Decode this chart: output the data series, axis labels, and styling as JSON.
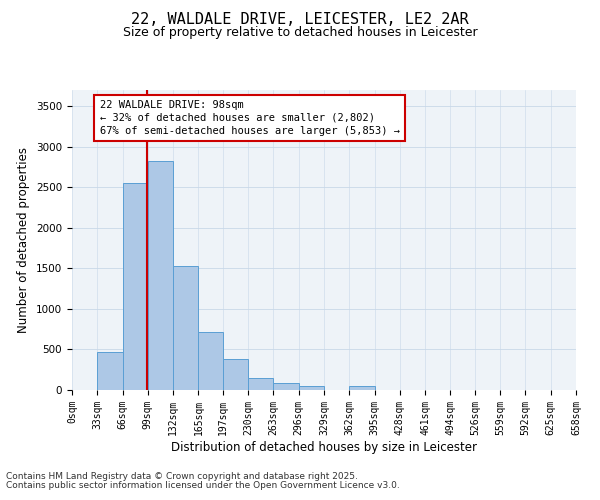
{
  "title_line1": "22, WALDALE DRIVE, LEICESTER, LE2 2AR",
  "title_line2": "Size of property relative to detached houses in Leicester",
  "xlabel": "Distribution of detached houses by size in Leicester",
  "ylabel": "Number of detached properties",
  "bar_values": [
    0,
    470,
    2550,
    2820,
    1530,
    720,
    380,
    150,
    90,
    50,
    0,
    50,
    0,
    0,
    0,
    0,
    0,
    0,
    0,
    0
  ],
  "bin_edges": [
    0,
    33,
    66,
    99,
    132,
    165,
    197,
    230,
    263,
    296,
    329,
    362,
    395,
    428,
    461,
    494,
    526,
    559,
    592,
    625,
    658
  ],
  "tick_labels": [
    "0sqm",
    "33sqm",
    "66sqm",
    "99sqm",
    "132sqm",
    "165sqm",
    "197sqm",
    "230sqm",
    "263sqm",
    "296sqm",
    "329sqm",
    "362sqm",
    "395sqm",
    "428sqm",
    "461sqm",
    "494sqm",
    "526sqm",
    "559sqm",
    "592sqm",
    "625sqm",
    "658sqm"
  ],
  "bar_color": "#adc8e6",
  "bar_edge_color": "#5a9fd4",
  "vline_x": 98,
  "vline_color": "#cc0000",
  "annotation_text": "22 WALDALE DRIVE: 98sqm\n← 32% of detached houses are smaller (2,802)\n67% of semi-detached houses are larger (5,853) →",
  "annotation_box_color": "#cc0000",
  "ylim": [
    0,
    3700
  ],
  "yticks": [
    0,
    500,
    1000,
    1500,
    2000,
    2500,
    3000,
    3500
  ],
  "grid_color": "#c8d8e8",
  "bg_color": "#eef3f8",
  "footer_line1": "Contains HM Land Registry data © Crown copyright and database right 2025.",
  "footer_line2": "Contains public sector information licensed under the Open Government Licence v3.0.",
  "title_fontsize": 11,
  "subtitle_fontsize": 9,
  "axis_label_fontsize": 8.5,
  "tick_fontsize": 7,
  "footer_fontsize": 6.5,
  "annot_fontsize": 7.5
}
